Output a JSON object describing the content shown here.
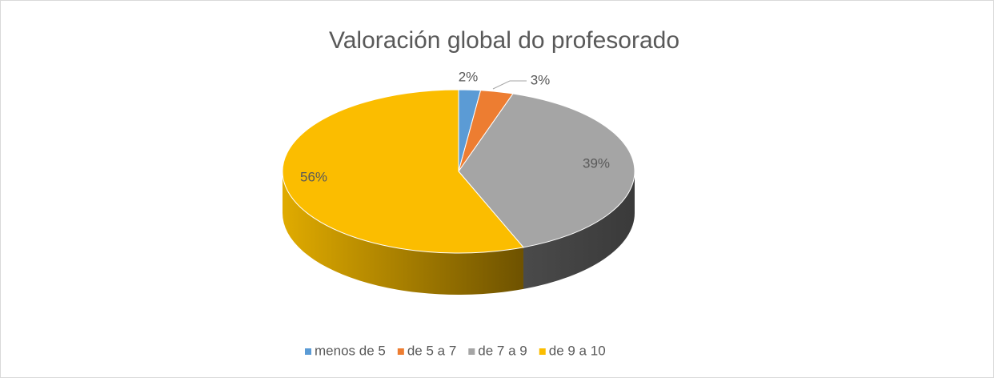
{
  "chart_data": {
    "type": "pie",
    "title": "Valoración global do profesorado",
    "categories": [
      "menos de 5",
      "de 5 a 7",
      "de 7 a 9",
      "de 9 a 10"
    ],
    "values": [
      2,
      3,
      39,
      56
    ],
    "value_labels": [
      "2%",
      "3%",
      "39%",
      "56%"
    ],
    "colors": [
      "#5b9bd5",
      "#ed7d31",
      "#a5a5a5",
      "#fbbd00"
    ],
    "legend": "bottom"
  }
}
